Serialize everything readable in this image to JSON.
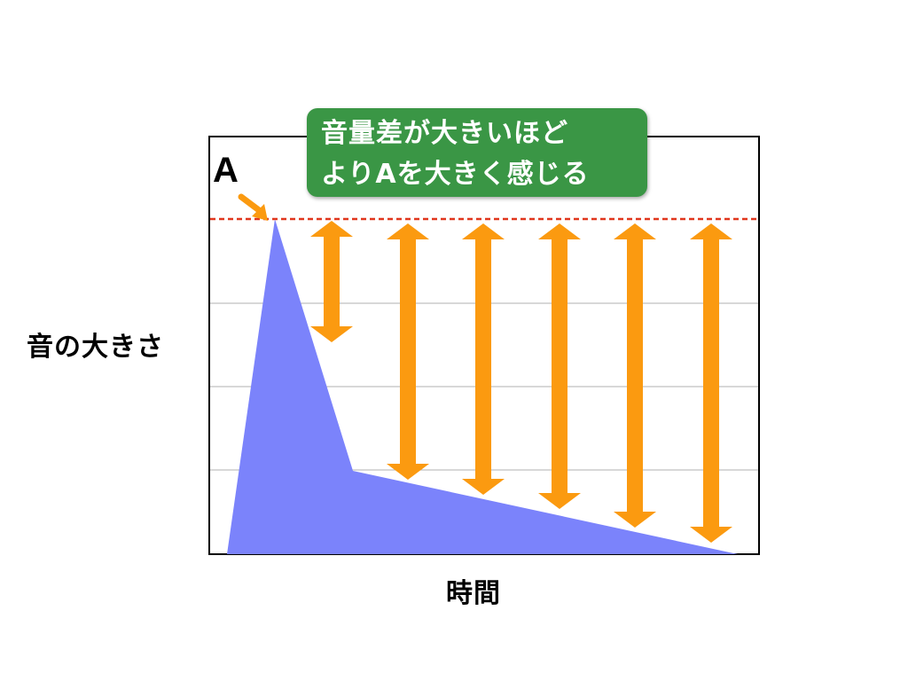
{
  "axis": {
    "y_label": "音の大きさ",
    "x_label": "時間"
  },
  "point_label": "A",
  "callout": {
    "line1": "音量差が大きいほど",
    "line2": "よりAを大きく感じる"
  },
  "colors": {
    "envelope_fill": "#7b83fb",
    "arrow": "#fb9a10",
    "reference_line": "#e0361d",
    "callout_bg": "#3a9645",
    "gridline": "#b0b0b0"
  }
}
